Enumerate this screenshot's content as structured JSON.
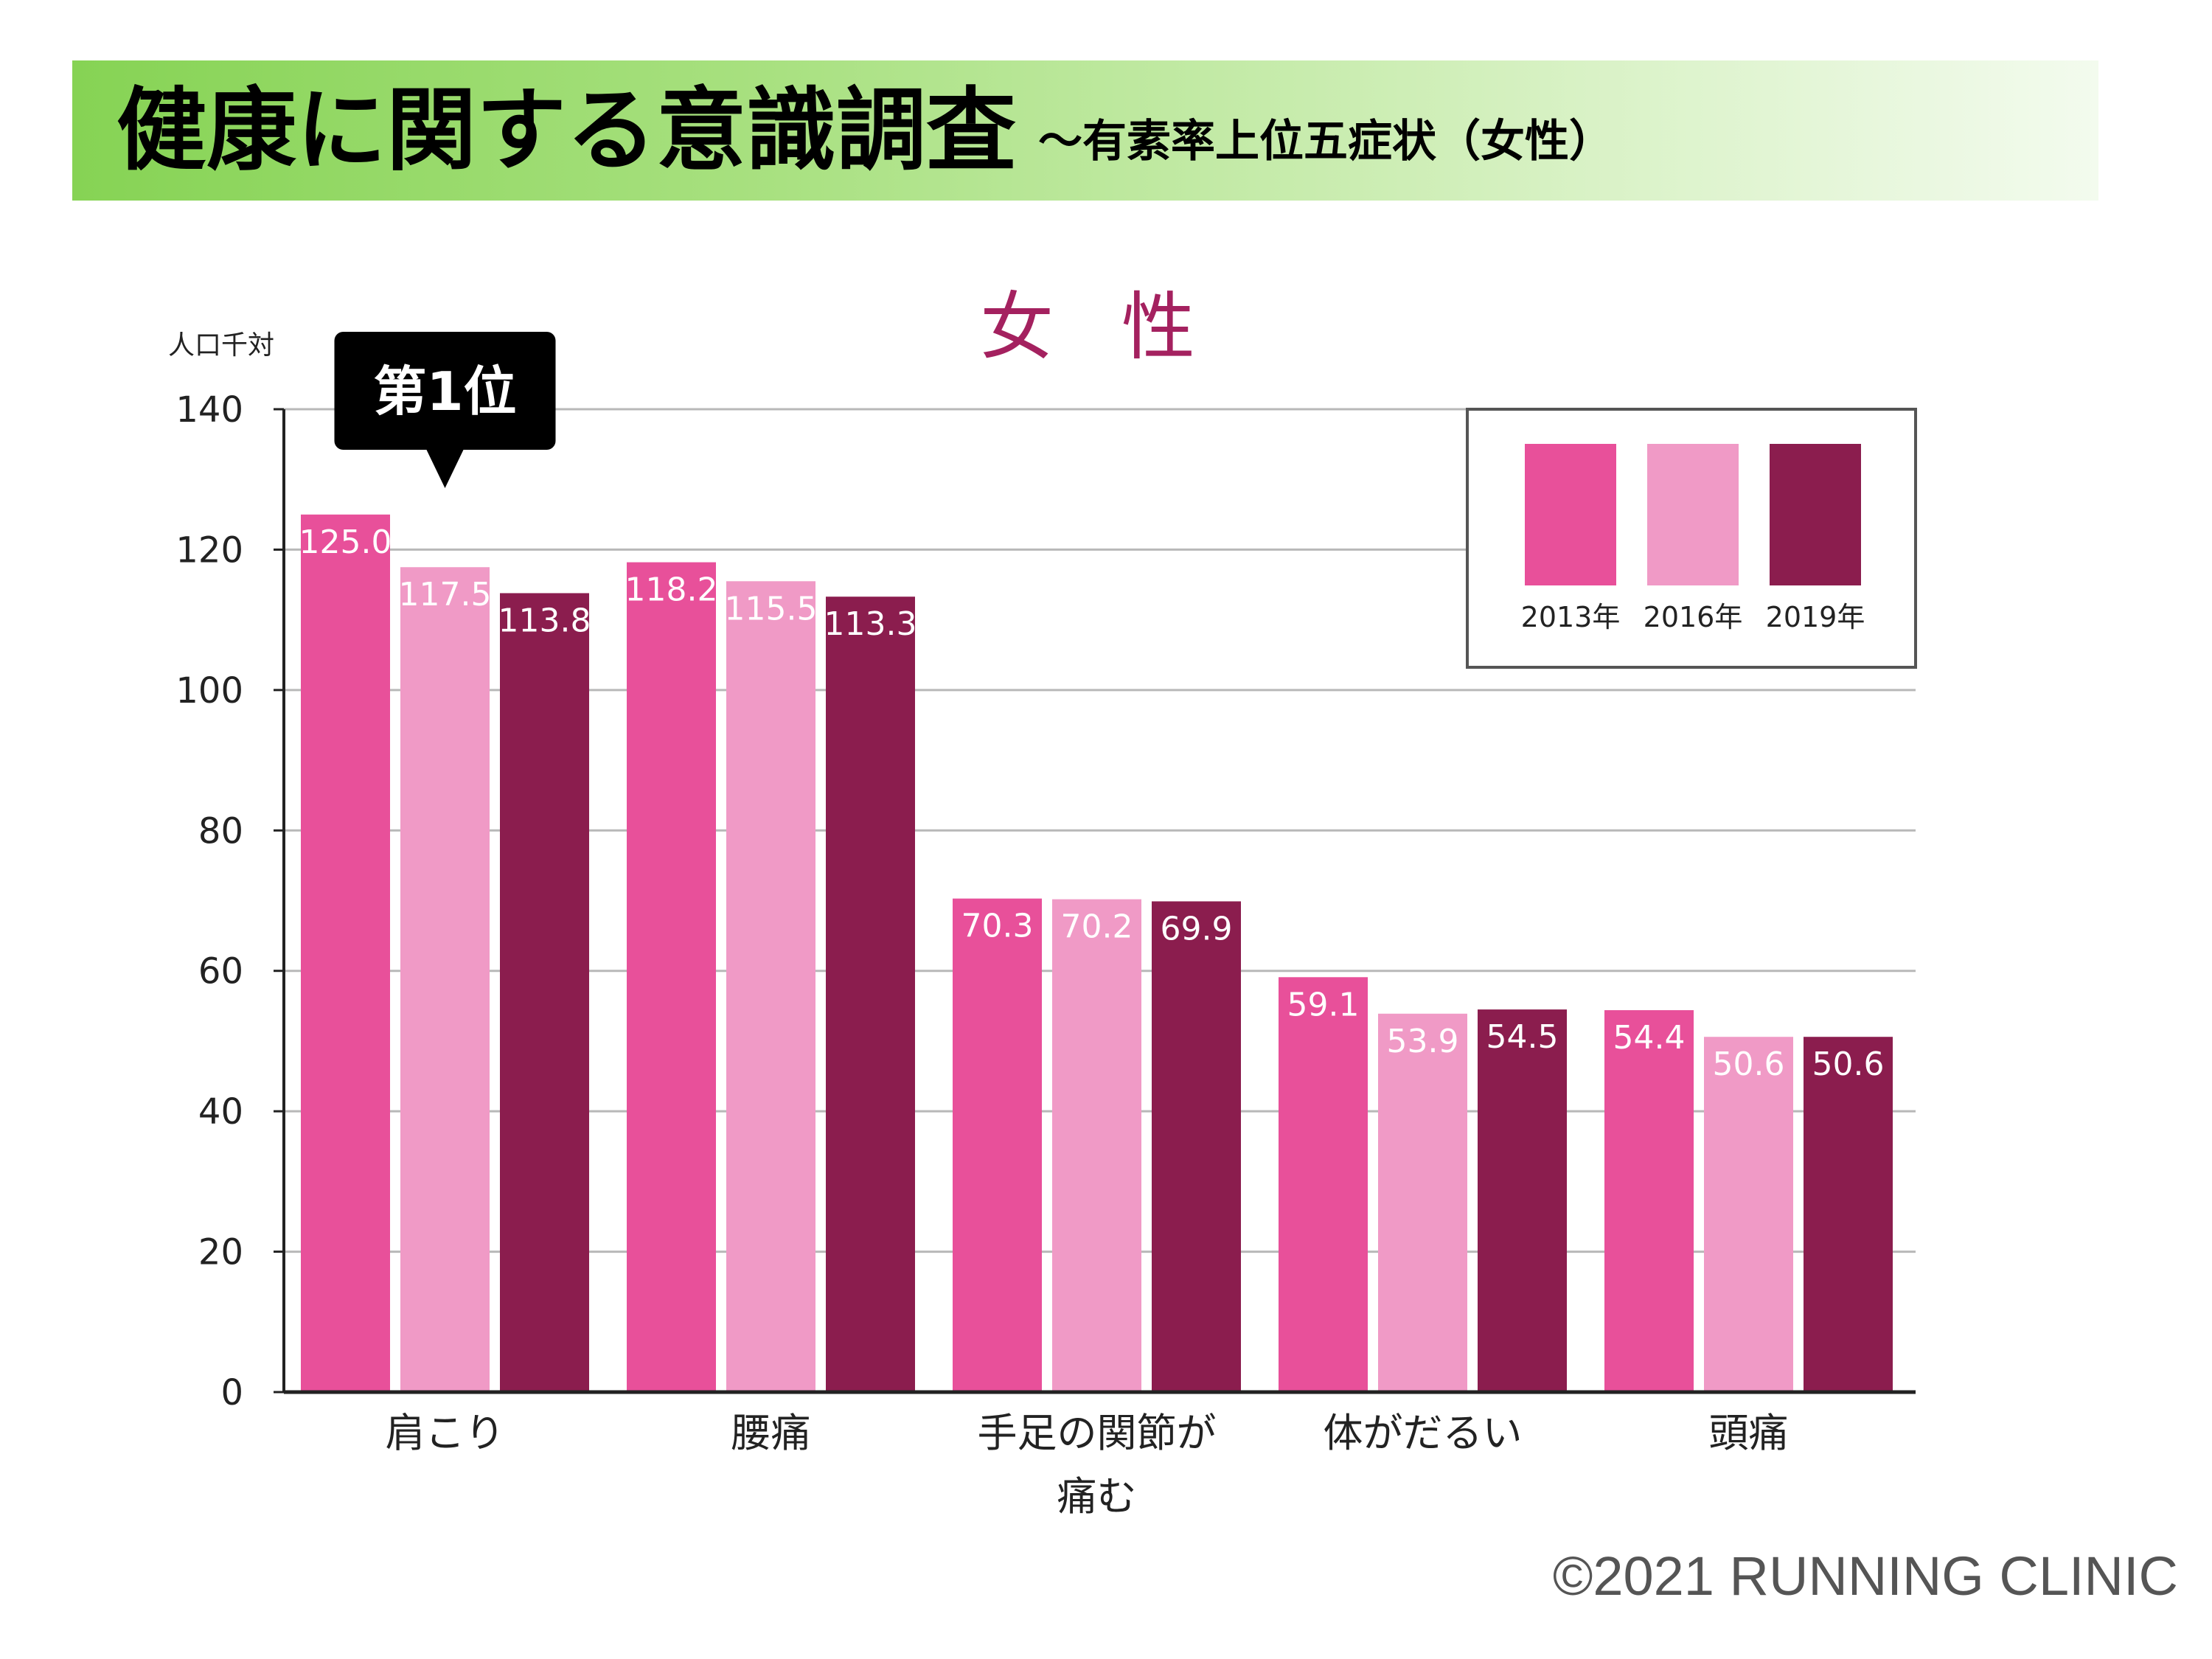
{
  "header": {
    "title": "健康に関する意識調査",
    "subtitle": "〜有素率上位五症状（女性）"
  },
  "footer": {
    "copyright": "©2021 RUNNING CLINIC"
  },
  "chart_data": {
    "type": "bar",
    "title": "女 性",
    "ylabel": "人口千対",
    "ylim": [
      0,
      140
    ],
    "yticks": [
      0,
      20,
      40,
      60,
      80,
      100,
      120,
      140
    ],
    "grid": true,
    "legend_position": "top-right",
    "categories": [
      "肩こり",
      "腰痛",
      "手足の関節が痛む",
      "体がだるい",
      "頭痛"
    ],
    "category_lines": [
      [
        "肩こり"
      ],
      [
        "腰痛"
      ],
      [
        "手足の関節が",
        "痛む"
      ],
      [
        "体がだるい"
      ],
      [
        "頭痛"
      ]
    ],
    "series": [
      {
        "name": "2013年",
        "color": "#e8509a",
        "label_color": "#ffffff",
        "values": [
          125.0,
          118.2,
          70.3,
          59.1,
          54.4
        ]
      },
      {
        "name": "2016年",
        "color": "#f09ac6",
        "label_color": "#ffffff",
        "values": [
          117.5,
          115.5,
          70.2,
          53.9,
          50.6
        ]
      },
      {
        "name": "2019年",
        "color": "#8b1d4e",
        "label_color": "#ffffff",
        "values": [
          113.8,
          113.3,
          69.9,
          54.5,
          50.6
        ]
      }
    ],
    "annotation": {
      "text": "第1位",
      "category_index": 0
    },
    "title_color": "#a4215f"
  }
}
